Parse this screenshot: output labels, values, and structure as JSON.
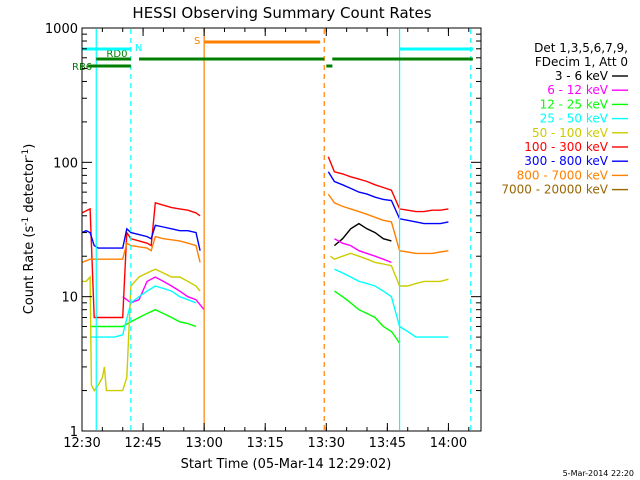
{
  "chart_data": {
    "type": "line",
    "title": "HESSI Observing Summary Count Rates",
    "xlabel": "Start Time (05-Mar-14 12:29:02)",
    "ylabel_main": "Count Rate (s",
    "ylabel_sup1": "-1",
    "ylabel_mid": " detector",
    "ylabel_sup2": "-1",
    "ylabel_end": ")",
    "y_scale": "log",
    "xlim_minutes": [
      0,
      98
    ],
    "ylim": [
      1,
      1000
    ],
    "x_ticks": [
      {
        "label": "12:30",
        "t": 0
      },
      {
        "label": "12:45",
        "t": 15
      },
      {
        "label": "13:00",
        "t": 30
      },
      {
        "label": "13:15",
        "t": 45
      },
      {
        "label": "13:30",
        "t": 60
      },
      {
        "label": "13:45",
        "t": 75
      },
      {
        "label": "14:00",
        "t": 90
      }
    ],
    "y_ticks": [
      {
        "label": "1000",
        "v": 1000
      },
      {
        "label": "100",
        "v": 100
      },
      {
        "label": "10",
        "v": 10
      },
      {
        "label": "1",
        "v": 1
      }
    ],
    "legend_header": [
      "Det 1,3,5,6,7,9,",
      "FDecim 1, Att 0"
    ],
    "legend_position": "right",
    "series": [
      {
        "name": "3 - 6 keV",
        "color": "#000000",
        "segments": [
          [
            [
              62,
              24
            ],
            [
              64,
              27
            ],
            [
              66,
              32
            ],
            [
              68,
              35
            ],
            [
              70,
              32
            ],
            [
              72,
              30
            ],
            [
              74,
              27
            ],
            [
              76,
              26
            ]
          ]
        ]
      },
      {
        "name": "6 - 12 keV",
        "color": "#ff00ff",
        "segments": [
          [
            [
              10,
              10
            ],
            [
              12,
              9
            ],
            [
              14,
              9.5
            ],
            [
              16,
              13
            ],
            [
              18,
              14
            ],
            [
              20,
              13
            ],
            [
              22,
              12
            ],
            [
              24,
              11
            ],
            [
              26,
              10
            ],
            [
              28,
              9.5
            ],
            [
              30,
              8
            ]
          ],
          [
            [
              62,
              27
            ],
            [
              64,
              25
            ],
            [
              66,
              24
            ],
            [
              68,
              22
            ],
            [
              70,
              21
            ],
            [
              72,
              20
            ],
            [
              74,
              19
            ],
            [
              76,
              18
            ]
          ]
        ]
      },
      {
        "name": "12 - 25 keV",
        "color": "#00ff00",
        "segments": [
          [
            [
              2,
              6
            ],
            [
              4,
              6
            ],
            [
              6,
              6
            ],
            [
              8,
              6
            ],
            [
              10,
              6
            ],
            [
              12,
              6.5
            ],
            [
              14,
              7
            ],
            [
              16,
              7.5
            ],
            [
              18,
              8
            ],
            [
              20,
              7.5
            ],
            [
              22,
              7
            ],
            [
              24,
              6.5
            ],
            [
              26,
              6.3
            ],
            [
              28,
              6
            ]
          ],
          [
            [
              62,
              11
            ],
            [
              64,
              10
            ],
            [
              66,
              9
            ],
            [
              68,
              8
            ],
            [
              70,
              7.5
            ],
            [
              72,
              7
            ],
            [
              74,
              6
            ],
            [
              76,
              5.5
            ],
            [
              77,
              5
            ],
            [
              78,
              4.5
            ]
          ]
        ]
      },
      {
        "name": "25 - 50 keV",
        "color": "#00ffff",
        "segments": [
          [
            [
              2,
              5
            ],
            [
              4,
              5
            ],
            [
              6,
              5
            ],
            [
              8,
              5
            ],
            [
              10,
              5.2
            ],
            [
              12,
              9
            ],
            [
              14,
              10
            ],
            [
              16,
              11
            ],
            [
              18,
              12
            ],
            [
              20,
              11.5
            ],
            [
              22,
              11
            ],
            [
              24,
              10
            ],
            [
              26,
              9.5
            ],
            [
              28,
              9
            ]
          ],
          [
            [
              62,
              16
            ],
            [
              64,
              15
            ],
            [
              66,
              14
            ],
            [
              68,
              13
            ],
            [
              70,
              12.5
            ],
            [
              72,
              12
            ],
            [
              74,
              11
            ],
            [
              76,
              10
            ],
            [
              78,
              6
            ],
            [
              80,
              5.5
            ],
            [
              82,
              5
            ],
            [
              84,
              5
            ],
            [
              86,
              5
            ],
            [
              88,
              5
            ],
            [
              90,
              5
            ]
          ]
        ]
      },
      {
        "name": "50 - 100 keV",
        "color": "#cccc00",
        "segments": [
          [
            [
              0,
              13
            ],
            [
              1,
              13
            ],
            [
              2,
              14
            ],
            [
              2.3,
              2.2
            ],
            [
              3,
              2
            ],
            [
              4,
              2.2
            ],
            [
              5,
              2.5
            ],
            [
              5.5,
              3
            ],
            [
              6,
              2
            ],
            [
              7,
              2
            ],
            [
              8,
              2
            ],
            [
              9,
              2
            ],
            [
              10,
              2
            ],
            [
              11,
              2.5
            ],
            [
              12,
              12
            ],
            [
              14,
              14
            ],
            [
              16,
              15
            ],
            [
              18,
              16
            ],
            [
              20,
              15
            ],
            [
              22,
              14
            ],
            [
              24,
              14
            ],
            [
              26,
              13
            ],
            [
              28,
              12
            ],
            [
              29,
              11
            ]
          ],
          [
            [
              61,
              20
            ],
            [
              62,
              19
            ],
            [
              64,
              20
            ],
            [
              66,
              21
            ],
            [
              68,
              20
            ],
            [
              70,
              19
            ],
            [
              72,
              18
            ],
            [
              74,
              17.5
            ],
            [
              76,
              17
            ],
            [
              78,
              12
            ],
            [
              80,
              12
            ],
            [
              82,
              12.5
            ],
            [
              84,
              13
            ],
            [
              86,
              13
            ],
            [
              88,
              13
            ],
            [
              90,
              13.5
            ]
          ]
        ]
      },
      {
        "name": "100 - 300 keV",
        "color": "#ff0000",
        "segments": [
          [
            [
              0,
              42
            ],
            [
              2,
              45
            ],
            [
              3,
              7
            ],
            [
              4,
              7
            ],
            [
              6,
              7
            ],
            [
              8,
              7
            ],
            [
              9,
              7
            ],
            [
              10,
              7
            ],
            [
              11,
              30
            ],
            [
              12,
              27
            ],
            [
              14,
              26
            ],
            [
              16,
              25
            ],
            [
              17,
              24
            ],
            [
              18,
              50
            ],
            [
              20,
              48
            ],
            [
              22,
              46
            ],
            [
              24,
              45
            ],
            [
              26,
              44
            ],
            [
              28,
              42
            ],
            [
              29,
              40
            ]
          ],
          [
            [
              60.5,
              110
            ],
            [
              62,
              85
            ],
            [
              64,
              82
            ],
            [
              66,
              78
            ],
            [
              68,
              75
            ],
            [
              70,
              72
            ],
            [
              72,
              68
            ],
            [
              74,
              65
            ],
            [
              76,
              62
            ],
            [
              78,
              45
            ],
            [
              80,
              44
            ],
            [
              82,
              43
            ],
            [
              84,
              43
            ],
            [
              86,
              44
            ],
            [
              88,
              44
            ],
            [
              90,
              45
            ]
          ]
        ]
      },
      {
        "name": "300 - 800 keV",
        "color": "#0000ff",
        "segments": [
          [
            [
              0,
              30
            ],
            [
              1,
              31
            ],
            [
              2,
              30
            ],
            [
              3,
              24
            ],
            [
              4,
              23
            ],
            [
              6,
              23
            ],
            [
              8,
              23
            ],
            [
              9,
              23
            ],
            [
              10,
              23
            ],
            [
              11,
              32
            ],
            [
              12,
              30
            ],
            [
              14,
              29
            ],
            [
              16,
              28
            ],
            [
              17,
              27
            ],
            [
              18,
              34
            ],
            [
              20,
              33
            ],
            [
              22,
              32
            ],
            [
              24,
              31
            ],
            [
              26,
              31
            ],
            [
              28,
              30
            ],
            [
              29,
              22
            ]
          ],
          [
            [
              60.5,
              85
            ],
            [
              62,
              72
            ],
            [
              64,
              68
            ],
            [
              66,
              64
            ],
            [
              68,
              60
            ],
            [
              70,
              58
            ],
            [
              72,
              55
            ],
            [
              74,
              53
            ],
            [
              76,
              52
            ],
            [
              78,
              38
            ],
            [
              80,
              37
            ],
            [
              82,
              36
            ],
            [
              84,
              35
            ],
            [
              86,
              35
            ],
            [
              88,
              35
            ],
            [
              90,
              36
            ]
          ]
        ]
      },
      {
        "name": "800 - 7000 keV",
        "color": "#ff8000",
        "segments": [
          [
            [
              0,
              18
            ],
            [
              1,
              18.5
            ],
            [
              2,
              19
            ],
            [
              3,
              19
            ],
            [
              4,
              19
            ],
            [
              6,
              19
            ],
            [
              8,
              19
            ],
            [
              9,
              19
            ],
            [
              10,
              19
            ],
            [
              11,
              25
            ],
            [
              12,
              24
            ],
            [
              14,
              23.5
            ],
            [
              16,
              23
            ],
            [
              17,
              22
            ],
            [
              18,
              28
            ],
            [
              20,
              27
            ],
            [
              22,
              26.5
            ],
            [
              24,
              26
            ],
            [
              26,
              25
            ],
            [
              28,
              24
            ],
            [
              29,
              18
            ]
          ],
          [
            [
              60.5,
              58
            ],
            [
              62,
              50
            ],
            [
              64,
              47
            ],
            [
              66,
              45
            ],
            [
              68,
              43
            ],
            [
              70,
              41
            ],
            [
              72,
              39
            ],
            [
              74,
              37
            ],
            [
              76,
              36
            ],
            [
              78,
              22
            ],
            [
              80,
              21.5
            ],
            [
              82,
              21
            ],
            [
              84,
              21
            ],
            [
              86,
              21
            ],
            [
              88,
              21.5
            ],
            [
              90,
              22
            ]
          ]
        ]
      },
      {
        "name": "7000 - 20000 keV",
        "color": "#996600",
        "segments": []
      }
    ],
    "bars": [
      {
        "label": "RD0",
        "color": "#007f00",
        "ranges": [
          [
            3.5,
            12
          ],
          [
            14,
            59.5
          ],
          [
            60,
            61.5
          ],
          [
            61.5,
            80
          ],
          [
            61.5,
            96
          ]
        ]
      },
      {
        "label": "RB6",
        "color": "#007f00",
        "ranges": [
          [
            1.5,
            12
          ]
        ]
      },
      {
        "label": "N",
        "color": "#00ffff",
        "ranges": [
          [
            -3,
            12
          ],
          [
            78,
            96
          ]
        ]
      },
      {
        "label": "S",
        "color": "#ff8000",
        "ranges": [
          [
            30,
            58.5
          ]
        ]
      }
    ],
    "vlines": [
      {
        "t": 3.5,
        "color": "#00ffff",
        "style": "solid"
      },
      {
        "t": 12,
        "color": "#00ffff",
        "style": "dashed"
      },
      {
        "t": 30,
        "color": "#ff8000",
        "style": "solid"
      },
      {
        "t": 59.5,
        "color": "#ff8000",
        "style": "dashed"
      },
      {
        "t": 78,
        "color": "#00ffff",
        "style": "solid"
      },
      {
        "t": 95.5,
        "color": "#00ffff",
        "style": "dashed"
      }
    ],
    "footer": "5-Mar-2014 22:20"
  }
}
